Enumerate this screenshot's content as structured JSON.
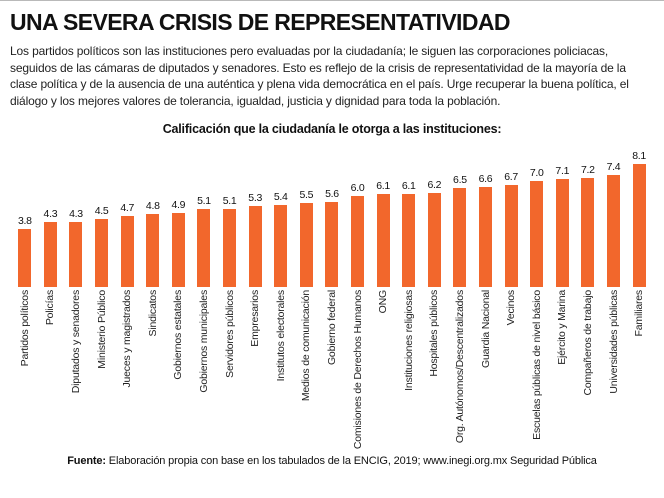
{
  "header": {
    "title": "UNA SEVERA CRISIS DE REPRESENTATIVIDAD",
    "intro_lines": [
      "Los partidos políticos son las instituciones pero evaluadas por la ciudadanía; le siguen las corporaciones policiacas,",
      "seguidos de las cámaras de diputados y senadores. Esto es reflejo de la crisis de representatividad de la mayoría de la",
      "clase política y de la ausencia de una auténtica y plena vida democrática en el país. Urge recuperar la buena política, el",
      "diálogo y los mejores valores de tolerancia, igualdad, justicia y dignidad para toda la población."
    ]
  },
  "chart_data": {
    "type": "bar",
    "title": "Calificación que la ciudadanía le otorga a las instituciones:",
    "categories": [
      "Partidos políticos",
      "Policías",
      "Diputados y senadores",
      "Ministerio Público",
      "Jueces y magistrados",
      "Sindicatos",
      "Gobiernos estatales",
      "Gobiernos municipales",
      "Servidores públicos",
      "Empresarios",
      "Institutos electorales",
      "Medios de comunicación",
      "Gobierno federal",
      "Comisiones de Derechos Humanos",
      "ONG",
      "Instituciones religiosas",
      "Hospitales públicos",
      "Org. Autónomos/Descentralizados",
      "Guardia Nacional",
      "Vecinos",
      "Escuelas públicas de nivel básico",
      "Ejército y Marina",
      "Compañeros de trabajo",
      "Universidades públicas",
      "Familiares"
    ],
    "values": [
      3.8,
      4.3,
      4.3,
      4.5,
      4.7,
      4.8,
      4.9,
      5.1,
      5.1,
      5.3,
      5.4,
      5.5,
      5.6,
      6.0,
      6.1,
      6.1,
      6.2,
      6.5,
      6.6,
      6.7,
      7.0,
      7.1,
      7.2,
      7.4,
      8.1
    ],
    "value_decimals": 1,
    "bar_color": "#F2672C",
    "ylim": [
      0,
      8.5
    ],
    "grid": false,
    "orientation": "vertical",
    "category_label_rotation": -90
  },
  "footer": {
    "source_label": "Fuente:",
    "source_text": " Elaboración propia con base en los tabulados de la ENCIG, 2019; www.inegi.org.mx Seguridad Pública"
  }
}
